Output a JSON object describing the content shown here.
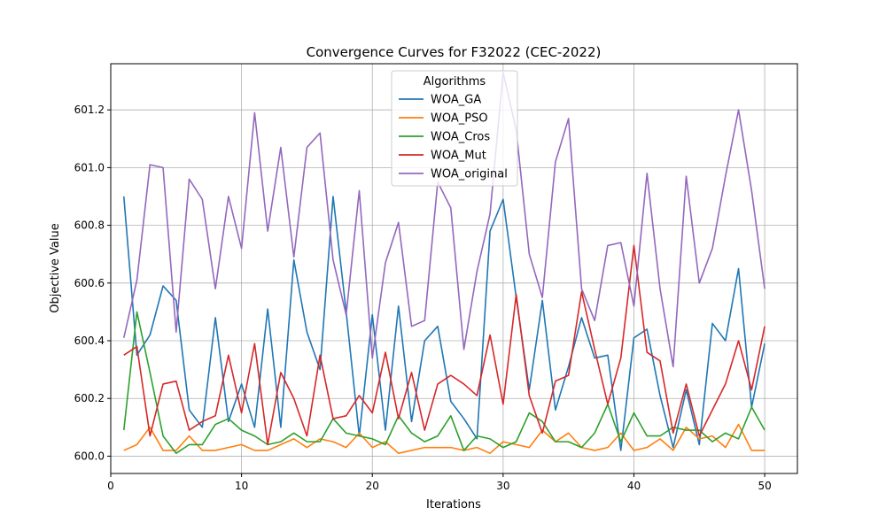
{
  "chart_data": {
    "type": "line",
    "title": "Convergence Curves for F32022 (CEC-2022)",
    "xlabel": "Iterations",
    "ylabel": "Objective Value",
    "xlim": [
      0,
      52.5
    ],
    "ylim": [
      599.94,
      601.36
    ],
    "xticks": [
      0,
      10,
      20,
      30,
      40,
      50
    ],
    "yticks": [
      600.0,
      600.2,
      600.4,
      600.6,
      600.8,
      601.0,
      601.2
    ],
    "ytick_labels": [
      "600.0",
      "600.2",
      "600.4",
      "600.6",
      "600.8",
      "601.0",
      "601.2"
    ],
    "grid": true,
    "legend": {
      "title": "Algorithms",
      "placement": "upper-center"
    },
    "x": [
      1,
      2,
      3,
      4,
      5,
      6,
      7,
      8,
      9,
      10,
      11,
      12,
      13,
      14,
      15,
      16,
      17,
      18,
      19,
      20,
      21,
      22,
      23,
      24,
      25,
      26,
      27,
      28,
      29,
      30,
      31,
      32,
      33,
      34,
      35,
      36,
      37,
      38,
      39,
      40,
      41,
      42,
      43,
      44,
      45,
      46,
      47,
      48,
      49,
      50
    ],
    "series": [
      {
        "name": "WOA_GA",
        "color": "#1f77b4",
        "values": [
          600.9,
          600.35,
          600.42,
          600.59,
          600.54,
          600.16,
          600.1,
          600.48,
          600.12,
          600.25,
          600.1,
          600.51,
          600.1,
          600.68,
          600.43,
          600.3,
          600.9,
          600.5,
          600.07,
          600.49,
          600.09,
          600.52,
          600.12,
          600.4,
          600.45,
          600.19,
          600.13,
          600.06,
          600.78,
          600.89,
          600.55,
          600.23,
          600.54,
          600.16,
          600.31,
          600.48,
          600.34,
          600.35,
          600.02,
          600.41,
          600.44,
          600.21,
          600.03,
          600.23,
          600.04,
          600.46,
          600.4,
          600.65,
          600.17,
          600.39
        ]
      },
      {
        "name": "WOA_PSO",
        "color": "#ff7f0e",
        "values": [
          600.02,
          600.04,
          600.1,
          600.02,
          600.02,
          600.07,
          600.02,
          600.02,
          600.03,
          600.04,
          600.02,
          600.02,
          600.04,
          600.06,
          600.03,
          600.06,
          600.05,
          600.03,
          600.08,
          600.03,
          600.05,
          600.01,
          600.02,
          600.03,
          600.03,
          600.03,
          600.02,
          600.03,
          600.01,
          600.05,
          600.04,
          600.03,
          600.09,
          600.05,
          600.08,
          600.03,
          600.02,
          600.03,
          600.08,
          600.02,
          600.03,
          600.06,
          600.02,
          600.1,
          600.06,
          600.07,
          600.03,
          600.11,
          600.02,
          600.02
        ]
      },
      {
        "name": "WOA_Cros",
        "color": "#2ca02c",
        "values": [
          600.09,
          600.5,
          600.29,
          600.07,
          600.01,
          600.04,
          600.04,
          600.11,
          600.13,
          600.09,
          600.07,
          600.04,
          600.05,
          600.08,
          600.05,
          600.05,
          600.13,
          600.08,
          600.07,
          600.06,
          600.04,
          600.14,
          600.08,
          600.05,
          600.07,
          600.14,
          600.02,
          600.07,
          600.06,
          600.03,
          600.05,
          600.15,
          600.12,
          600.05,
          600.05,
          600.03,
          600.08,
          600.18,
          600.05,
          600.15,
          600.07,
          600.07,
          600.1,
          600.09,
          600.09,
          600.05,
          600.08,
          600.06,
          600.17,
          600.09
        ]
      },
      {
        "name": "WOA_Mut",
        "color": "#d62728",
        "values": [
          600.35,
          600.38,
          600.07,
          600.25,
          600.26,
          600.09,
          600.12,
          600.14,
          600.35,
          600.15,
          600.39,
          600.04,
          600.29,
          600.2,
          600.07,
          600.35,
          600.13,
          600.14,
          600.21,
          600.15,
          600.36,
          600.13,
          600.29,
          600.09,
          600.25,
          600.28,
          600.25,
          600.21,
          600.42,
          600.18,
          600.56,
          600.21,
          600.08,
          600.26,
          600.28,
          600.57,
          600.37,
          600.18,
          600.34,
          600.73,
          600.36,
          600.33,
          600.08,
          600.25,
          600.07,
          600.16,
          600.25,
          600.4,
          600.23,
          600.45
        ]
      },
      {
        "name": "WOA_original",
        "color": "#9467bd",
        "values": [
          600.41,
          600.61,
          601.01,
          601.0,
          600.43,
          600.96,
          600.89,
          600.58,
          600.9,
          600.72,
          601.19,
          600.78,
          601.07,
          600.69,
          601.07,
          601.12,
          600.68,
          600.49,
          600.92,
          600.34,
          600.67,
          600.81,
          600.45,
          600.47,
          600.95,
          600.86,
          600.37,
          600.64,
          600.84,
          601.33,
          601.13,
          600.7,
          600.55,
          601.02,
          601.17,
          600.58,
          600.47,
          600.73,
          600.74,
          600.52,
          600.98,
          600.58,
          600.31,
          600.97,
          600.6,
          600.72,
          600.97,
          601.2,
          600.92,
          600.58
        ]
      }
    ]
  }
}
